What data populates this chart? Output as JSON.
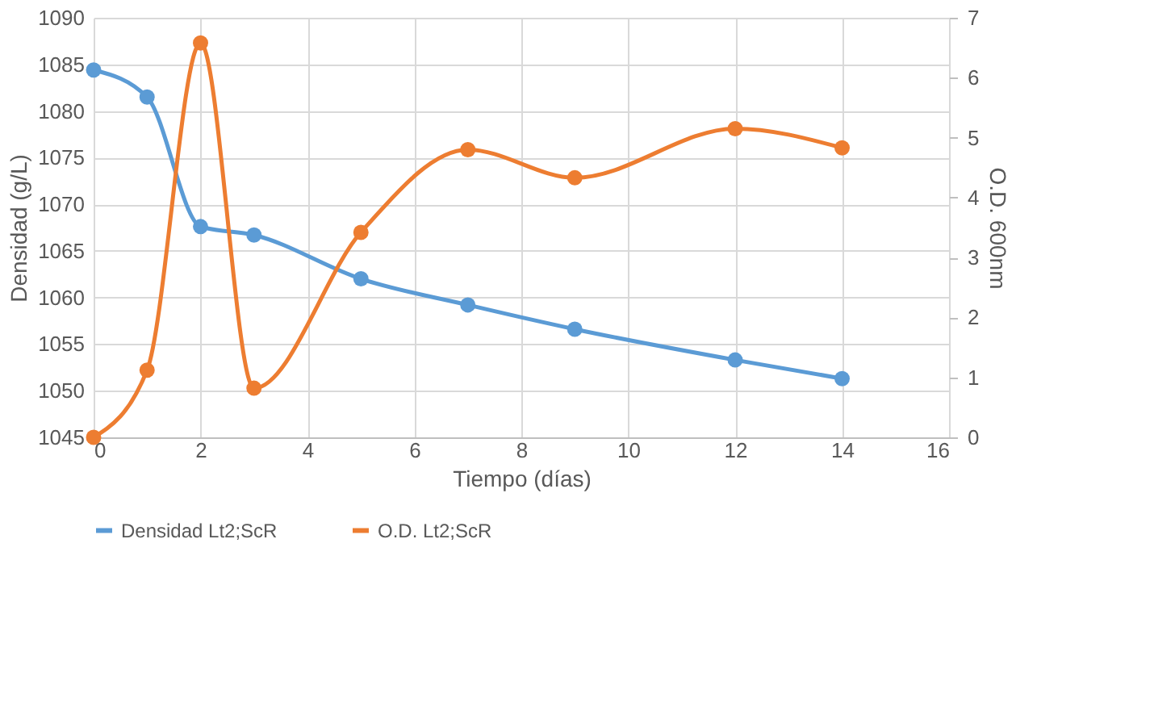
{
  "chart_data": {
    "type": "line",
    "xlabel": "Tiempo (días)",
    "ylabel": "Densidad (g/L)",
    "y2label": "O.D. 600nm",
    "x": [
      0,
      1,
      2,
      3,
      5,
      7,
      9,
      12,
      14
    ],
    "series": [
      {
        "name": "Densidad Lt2;ScR",
        "color": "#5b9bd5",
        "values": [
          1084.4,
          1081.5,
          1067.6,
          1066.7,
          1062.0,
          1059.2,
          1056.6,
          1053.3,
          1051.3
        ]
      },
      {
        "name": "O.D. Lt2;ScR",
        "color": "#ed7d31",
        "axis": "y2",
        "values": [
          0,
          1.12,
          6.58,
          0.82,
          3.42,
          4.8,
          4.33,
          5.15,
          4.83
        ]
      }
    ],
    "xlim": [
      0,
      16
    ],
    "xticks": [
      0,
      2,
      4,
      6,
      8,
      10,
      12,
      14,
      16
    ],
    "ylim": [
      1045,
      1090
    ],
    "yticks": [
      1045,
      1050,
      1055,
      1060,
      1065,
      1070,
      1075,
      1080,
      1085,
      1090
    ],
    "y2lim": [
      0,
      7
    ],
    "y2ticks": [
      0,
      1,
      2,
      3,
      4,
      5,
      6,
      7
    ],
    "grid": true,
    "legend": "bottom",
    "marker": "circle",
    "line_style": "solid"
  }
}
